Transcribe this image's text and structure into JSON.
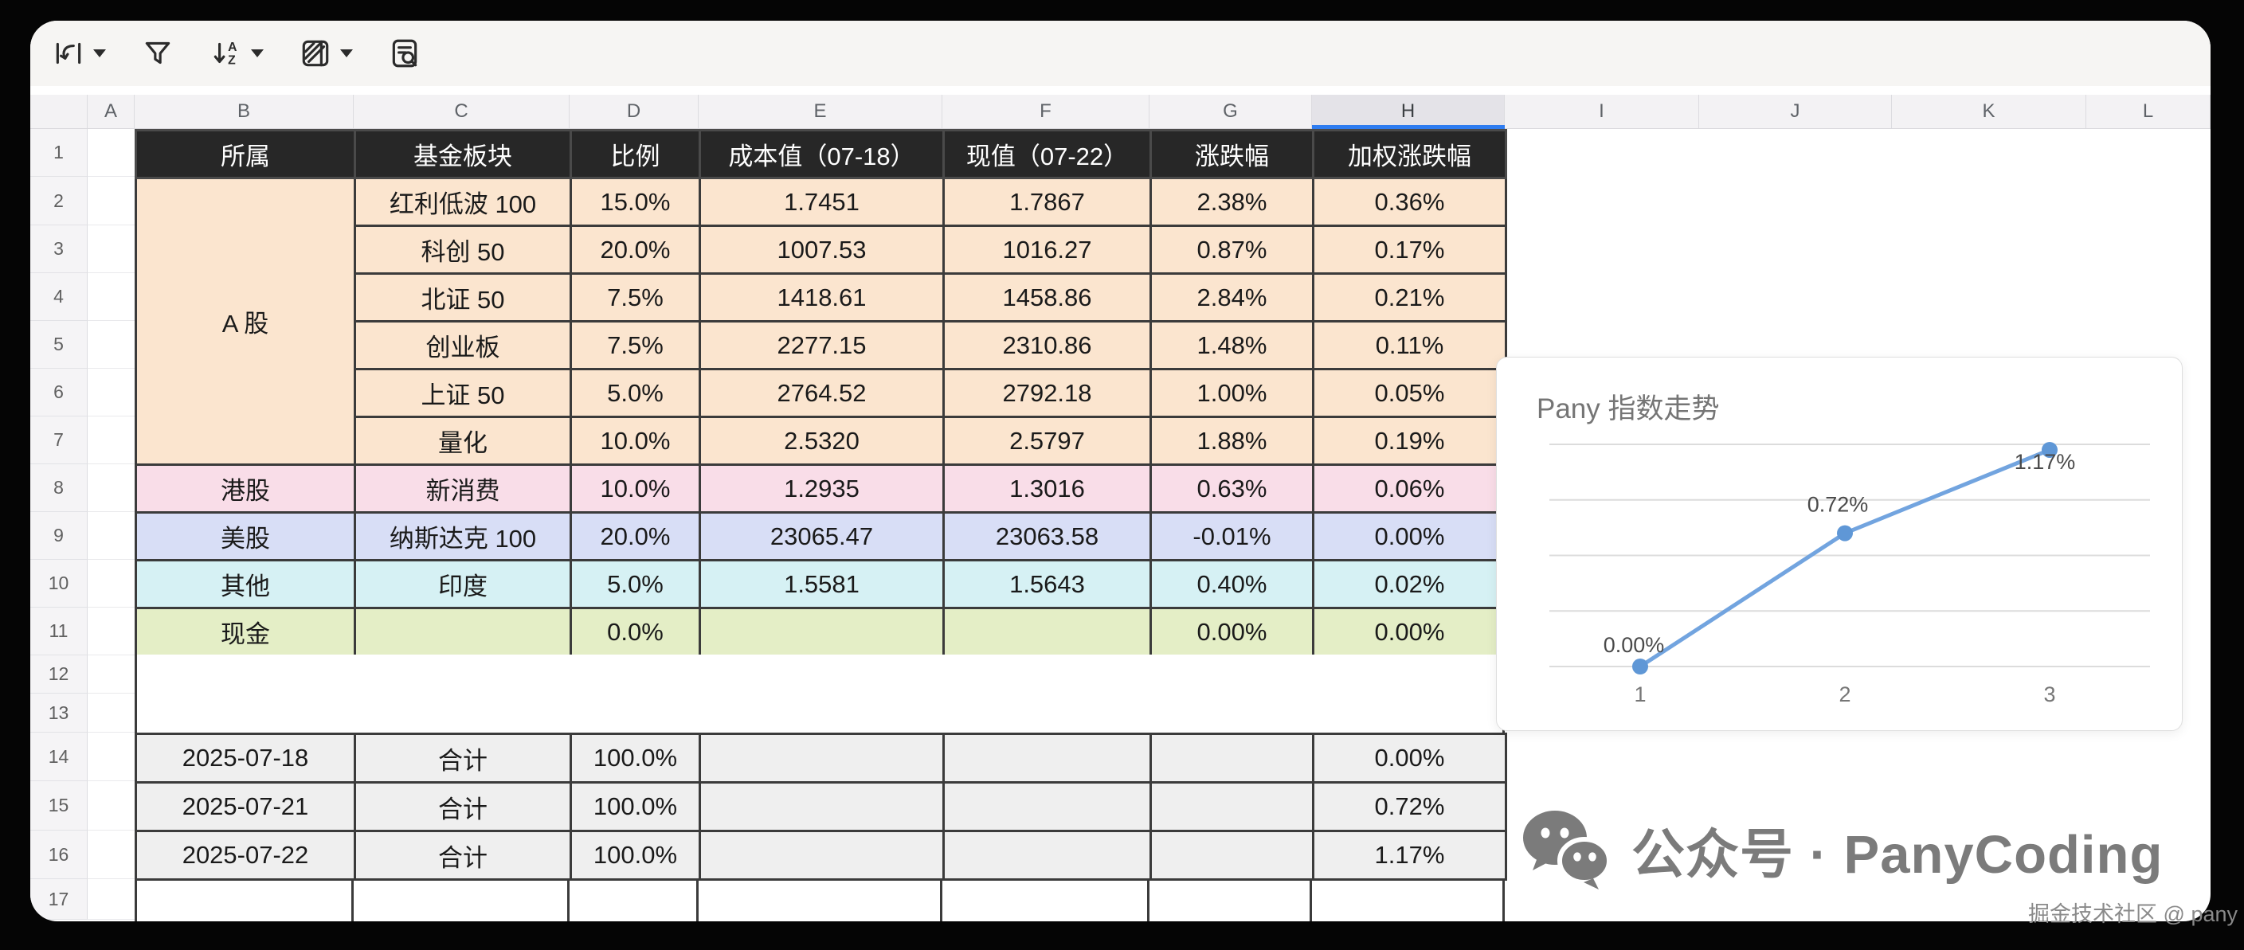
{
  "app": {
    "canvas_bg": "#050505",
    "window_bg": "#ffffff",
    "toolbar_bg": "#f6f5f3"
  },
  "toolbar": {
    "icons": [
      {
        "name": "text-rotation",
        "has_caret": true
      },
      {
        "name": "filter",
        "has_caret": false
      },
      {
        "name": "sort-az",
        "has_caret": true
      },
      {
        "name": "cell-format",
        "has_caret": true
      },
      {
        "name": "find-replace",
        "has_caret": false
      }
    ]
  },
  "sheet": {
    "column_letters": [
      "A",
      "B",
      "C",
      "D",
      "E",
      "F",
      "G",
      "H",
      "I",
      "J",
      "K",
      "L"
    ],
    "selected_column": "H",
    "selection_color": "#2e7cf0",
    "row_numbers": [
      "1",
      "2",
      "3",
      "4",
      "5",
      "6",
      "7",
      "8",
      "9",
      "10",
      "11",
      "12",
      "13",
      "14",
      "15",
      "16",
      "17"
    ]
  },
  "portfolio_table": {
    "headers": [
      "所属",
      "基金板块",
      "比例",
      "成本值（07-18）",
      "现值（07-22）",
      "涨跌幅",
      "加权涨跌幅"
    ],
    "header_bg": "#272727",
    "header_fg": "#ffffff",
    "border_color": "#3b3b3b",
    "sections": [
      {
        "name": "A 股",
        "bg": "#fbe5cf",
        "rows": [
          [
            "红利低波 100",
            "15.0%",
            "1.7451",
            "1.7867",
            "2.38%",
            "0.36%"
          ],
          [
            "科创 50",
            "20.0%",
            "1007.53",
            "1016.27",
            "0.87%",
            "0.17%"
          ],
          [
            "北证 50",
            "7.5%",
            "1418.61",
            "1458.86",
            "2.84%",
            "0.21%"
          ],
          [
            "创业板",
            "7.5%",
            "2277.15",
            "2310.86",
            "1.48%",
            "0.11%"
          ],
          [
            "上证 50",
            "5.0%",
            "2764.52",
            "2792.18",
            "1.00%",
            "0.05%"
          ],
          [
            "量化",
            "10.0%",
            "2.5320",
            "2.5797",
            "1.88%",
            "0.19%"
          ]
        ]
      },
      {
        "name": "港股",
        "bg": "#f9dde8",
        "rows": [
          [
            "新消费",
            "10.0%",
            "1.2935",
            "1.3016",
            "0.63%",
            "0.06%"
          ]
        ]
      },
      {
        "name": "美股",
        "bg": "#d8def6",
        "rows": [
          [
            "纳斯达克 100",
            "20.0%",
            "23065.47",
            "23063.58",
            "-0.01%",
            "0.00%"
          ]
        ]
      },
      {
        "name": "其他",
        "bg": "#d6f1f4",
        "rows": [
          [
            "印度",
            "5.0%",
            "1.5581",
            "1.5643",
            "0.40%",
            "0.02%"
          ]
        ]
      },
      {
        "name": "现金",
        "bg": "#e4eec6",
        "rows": [
          [
            "",
            "0.0%",
            "",
            "",
            "0.00%",
            "0.00%"
          ]
        ]
      }
    ],
    "summary_bg": "#efefef",
    "summary_rows": [
      [
        "2025-07-18",
        "合计",
        "100.0%",
        "",
        "",
        "",
        "0.00%"
      ],
      [
        "2025-07-21",
        "合计",
        "100.0%",
        "",
        "",
        "",
        "0.72%"
      ],
      [
        "2025-07-22",
        "合计",
        "100.0%",
        "",
        "",
        "",
        "1.17%"
      ]
    ]
  },
  "chart_data": {
    "type": "line",
    "title": "Pany 指数走势",
    "x": [
      1,
      2,
      3
    ],
    "x_tick_labels": [
      "1",
      "2",
      "3"
    ],
    "series": [
      {
        "name": "Pany 指数",
        "values": [
          0.0,
          0.72,
          1.17
        ]
      }
    ],
    "point_labels": [
      "0.00%",
      "0.72%",
      "1.17%"
    ],
    "ylim": [
      0,
      1.2
    ],
    "gridlines": [
      0,
      0.3,
      0.6,
      0.9,
      1.2
    ],
    "grid": true,
    "legend": "none",
    "line_color": "#72a4df",
    "point_color": "#5f97d6",
    "label_color": "#4a4a4a",
    "axis_label_color": "#767676",
    "grid_color": "#dcdcdc",
    "title_color": "#757575"
  },
  "footer": {
    "wechat_text": "公众号 · PanyCoding",
    "wechat_color": "#7b7b7b",
    "watermark": "掘金技术社区 @ pany",
    "watermark_color": "#8a8a8a"
  }
}
